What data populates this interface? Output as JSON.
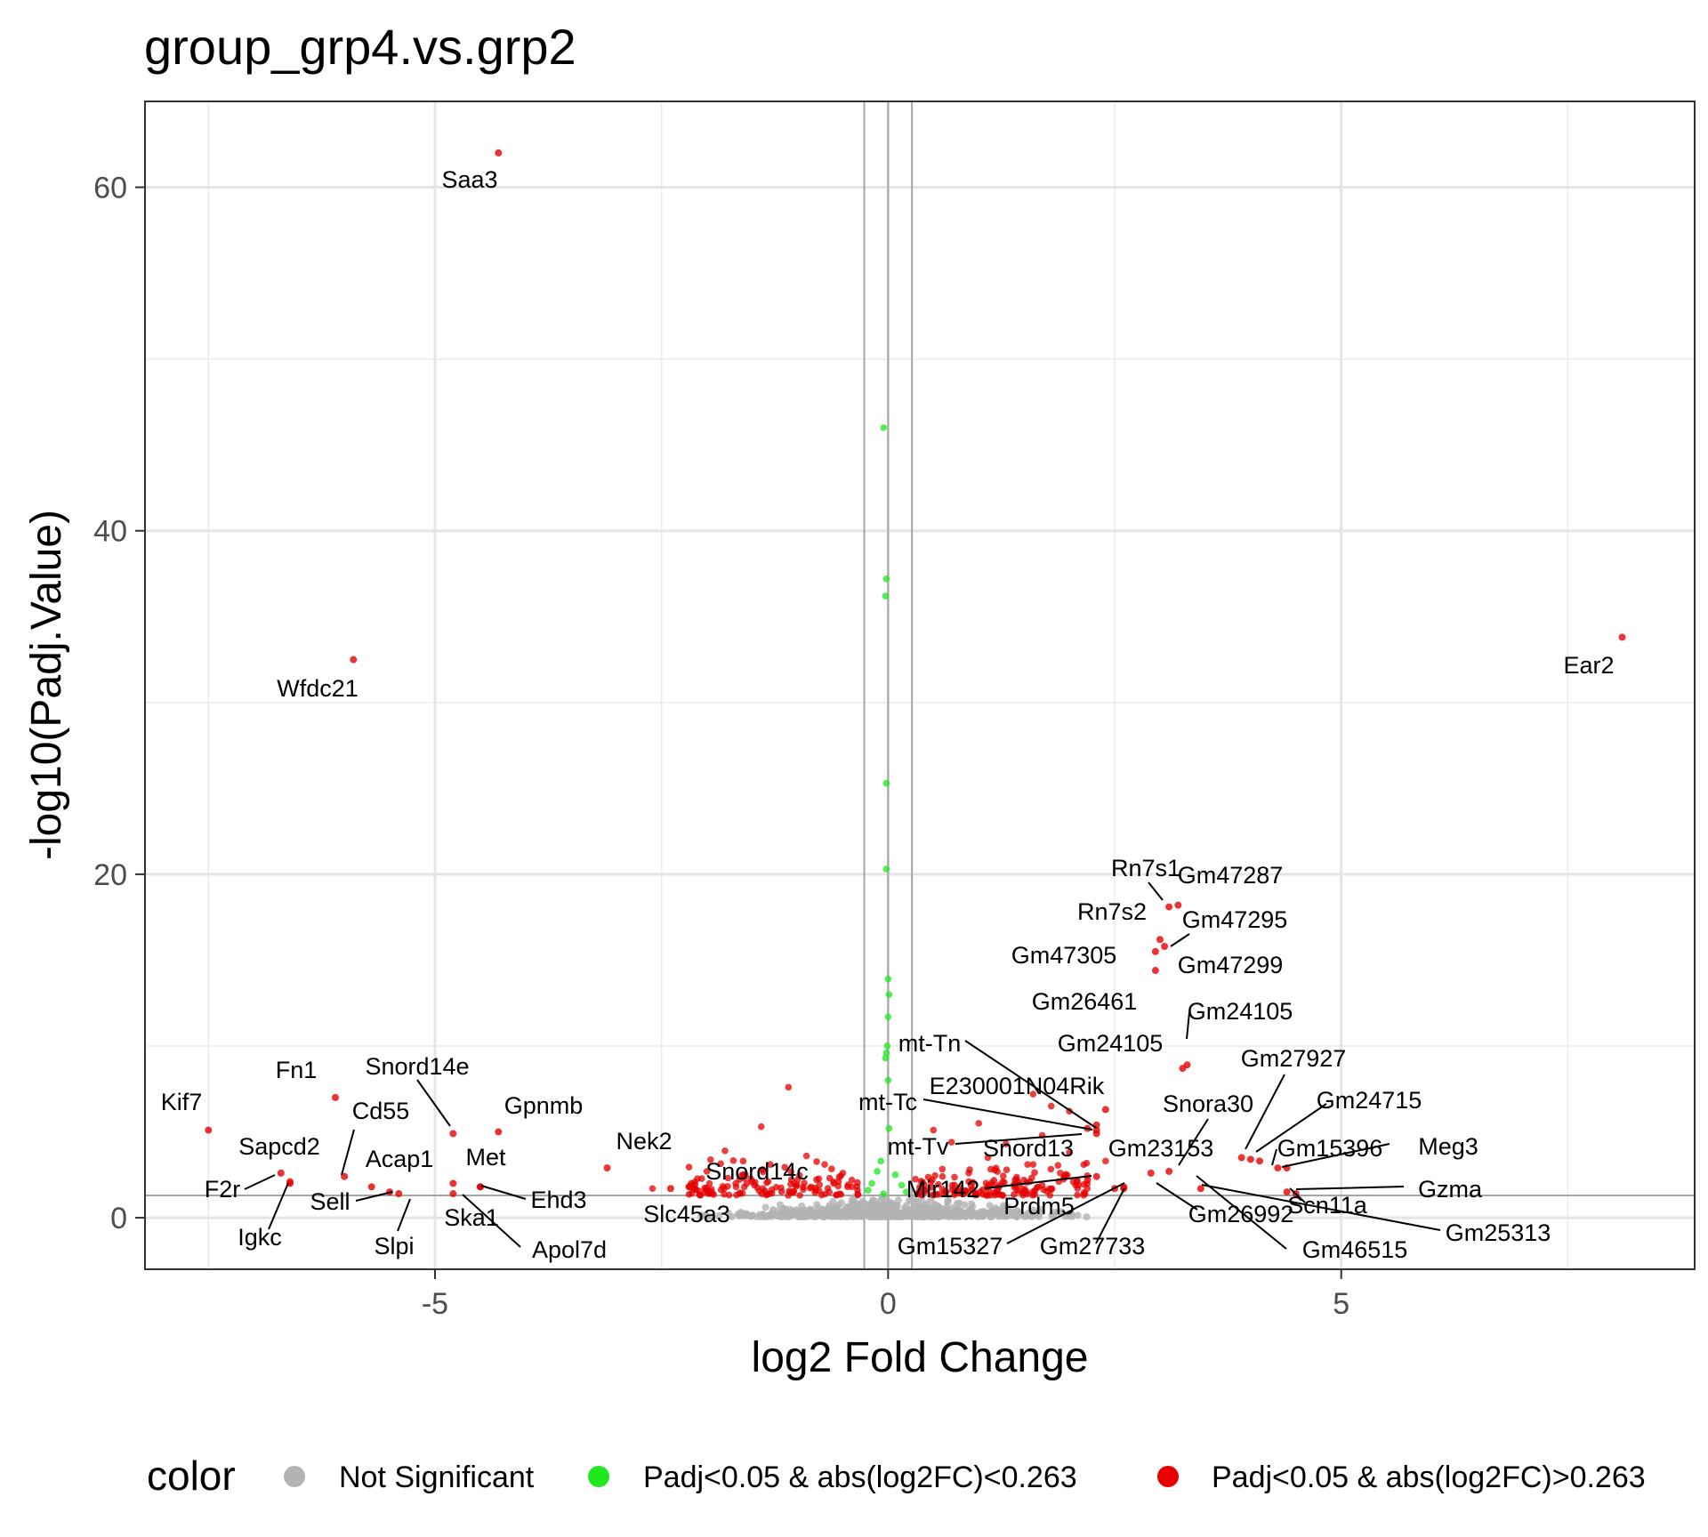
{
  "chart_data": {
    "type": "scatter",
    "title": "group_grp4.vs.grp2",
    "xlabel": "log2 Fold Change",
    "ylabel": "-log10(Padj.Value)",
    "xlim": [
      -8.2,
      8.9
    ],
    "ylim": [
      -3,
      65
    ],
    "x_ticks": [
      -5,
      0,
      5
    ],
    "y_ticks": [
      0,
      20,
      40,
      60
    ],
    "x_tick_labels": [
      "-5",
      "0",
      "5"
    ],
    "y_tick_labels": [
      "0",
      "20",
      "40",
      "60"
    ],
    "grid": true,
    "vlines": [
      -0.263,
      0,
      0.263
    ],
    "hline": 1.3,
    "legend": {
      "title": "color",
      "position": "bottom",
      "entries": [
        {
          "label": "Not Significant",
          "color": "#b3b3b3"
        },
        {
          "label": "Padj<0.05 & abs(log2FC)<0.263",
          "color": "#1ee81e"
        },
        {
          "label": "Padj<0.05 & abs(log2FC)>0.263",
          "color": "#e60000"
        }
      ]
    },
    "labeled_points": [
      {
        "gene": "Saa3",
        "x": -4.3,
        "y": 62.0
      },
      {
        "gene": "Wfdc21",
        "x": -5.9,
        "y": 32.5
      },
      {
        "gene": "Ear2",
        "x": 8.1,
        "y": 33.8
      },
      {
        "gene": "Rn7s1",
        "x": 3.1,
        "y": 18.1
      },
      {
        "gene": "Gm47287",
        "x": 3.2,
        "y": 18.2
      },
      {
        "gene": "Rn7s2",
        "x": 3.0,
        "y": 16.2
      },
      {
        "gene": "Gm47295",
        "x": 3.05,
        "y": 15.8
      },
      {
        "gene": "Gm47305",
        "x": 2.95,
        "y": 15.5
      },
      {
        "gene": "Gm47299",
        "x": 2.95,
        "y": 14.4
      },
      {
        "gene": "Gm24105",
        "x": 3.25,
        "y": 8.7
      },
      {
        "gene": "Gm26461",
        "x": 3.3,
        "y": 8.9
      },
      {
        "gene": "Gm27927",
        "x": 3.9,
        "y": 3.5
      },
      {
        "gene": "Gm24715",
        "x": 4.1,
        "y": 3.3
      },
      {
        "gene": "Snora30",
        "x": 4.0,
        "y": 3.4
      },
      {
        "gene": "Gm15396",
        "x": 4.3,
        "y": 2.9
      },
      {
        "gene": "Meg3",
        "x": 4.4,
        "y": 2.9
      },
      {
        "gene": "Gm23153",
        "x": 3.1,
        "y": 2.7
      },
      {
        "gene": "Gzma",
        "x": 4.5,
        "y": 1.4
      },
      {
        "gene": "Scn11a",
        "x": 4.4,
        "y": 1.5
      },
      {
        "gene": "Gm25313",
        "x": 3.45,
        "y": 1.7
      },
      {
        "gene": "Gm46515",
        "x": 2.9,
        "y": 2.6
      },
      {
        "gene": "Gm26992",
        "x": 2.6,
        "y": 1.8
      },
      {
        "gene": "Gm27733",
        "x": 2.6,
        "y": 1.7
      },
      {
        "gene": "Gm15327",
        "x": 2.5,
        "y": 1.7
      },
      {
        "gene": "Prdm5",
        "x": 2.3,
        "y": 2.4
      },
      {
        "gene": "Mir142",
        "x": 2.2,
        "y": 2.2
      },
      {
        "gene": "Snord13",
        "x": 2.3,
        "y": 4.9
      },
      {
        "gene": "mt-Tv",
        "x": 2.2,
        "y": 5.2
      },
      {
        "gene": "mt-Tc",
        "x": 2.3,
        "y": 5.1
      },
      {
        "gene": "mt-Tn",
        "x": 2.3,
        "y": 5.4
      },
      {
        "gene": "E230001N04Rik",
        "x": 2.4,
        "y": 6.3
      },
      {
        "gene": "Kif7",
        "x": -7.5,
        "y": 5.1
      },
      {
        "gene": "Fn1",
        "x": -6.1,
        "y": 7.0
      },
      {
        "gene": "Snord14e",
        "x": -4.8,
        "y": 4.9
      },
      {
        "gene": "Gpnmb",
        "x": -4.3,
        "y": 5.0
      },
      {
        "gene": "Cd55",
        "x": -6.0,
        "y": 2.4
      },
      {
        "gene": "Sapcd2",
        "x": -6.7,
        "y": 2.6
      },
      {
        "gene": "F2r",
        "x": -6.6,
        "y": 2.1
      },
      {
        "gene": "Igkc",
        "x": -6.6,
        "y": 2.0
      },
      {
        "gene": "Acap1",
        "x": -5.7,
        "y": 1.8
      },
      {
        "gene": "Sell",
        "x": -5.5,
        "y": 1.5
      },
      {
        "gene": "Slpi",
        "x": -5.4,
        "y": 1.4
      },
      {
        "gene": "Met",
        "x": -4.5,
        "y": 1.8
      },
      {
        "gene": "Ehd3",
        "x": -4.5,
        "y": 1.8
      },
      {
        "gene": "Ska1",
        "x": -4.8,
        "y": 2.0
      },
      {
        "gene": "Apol7d",
        "x": -4.8,
        "y": 1.4
      },
      {
        "gene": "Nek2",
        "x": -3.1,
        "y": 2.9
      },
      {
        "gene": "Snord14c",
        "x": -1.5,
        "y": 2.1
      },
      {
        "gene": "Slc45a3",
        "x": -2.4,
        "y": 1.7
      }
    ],
    "significant_small_fc_points": [
      {
        "x": -0.05,
        "y": 46.0
      },
      {
        "x": -0.02,
        "y": 37.2
      },
      {
        "x": -0.03,
        "y": 36.2
      },
      {
        "x": -0.02,
        "y": 25.3
      },
      {
        "x": -0.02,
        "y": 20.3
      },
      {
        "x": 0.0,
        "y": 13.9
      },
      {
        "x": 0.01,
        "y": 13.0
      },
      {
        "x": 0.0,
        "y": 11.7
      },
      {
        "x": -0.01,
        "y": 10.0
      },
      {
        "x": -0.02,
        "y": 9.6
      },
      {
        "x": -0.03,
        "y": 9.3
      },
      {
        "x": 0.0,
        "y": 8.0
      },
      {
        "x": 0.01,
        "y": 5.2
      },
      {
        "x": -0.08,
        "y": 3.3
      },
      {
        "x": -0.12,
        "y": 2.7
      },
      {
        "x": 0.08,
        "y": 2.5
      },
      {
        "x": -0.18,
        "y": 2.0
      },
      {
        "x": 0.15,
        "y": 1.9
      },
      {
        "x": -0.22,
        "y": 1.6
      },
      {
        "x": 0.2,
        "y": 1.5
      },
      {
        "x": -0.05,
        "y": 1.4
      }
    ],
    "significant_large_fc_points": [
      {
        "x": -1.1,
        "y": 7.6
      },
      {
        "x": -1.4,
        "y": 5.3
      },
      {
        "x": -1.8,
        "y": 3.9
      },
      {
        "x": -1.6,
        "y": 3.3
      },
      {
        "x": -1.3,
        "y": 3.1
      },
      {
        "x": -0.9,
        "y": 3.6
      },
      {
        "x": -0.7,
        "y": 3.1
      },
      {
        "x": -0.5,
        "y": 2.6
      },
      {
        "x": -2.0,
        "y": 2.7
      },
      {
        "x": -2.6,
        "y": 1.7
      },
      {
        "x": -2.2,
        "y": 1.8
      },
      {
        "x": -1.0,
        "y": 2.2
      },
      {
        "x": -0.6,
        "y": 2.0
      },
      {
        "x": -0.4,
        "y": 1.8
      },
      {
        "x": -0.8,
        "y": 1.6
      },
      {
        "x": 0.5,
        "y": 5.1
      },
      {
        "x": 0.7,
        "y": 4.4
      },
      {
        "x": 1.0,
        "y": 5.5
      },
      {
        "x": 1.3,
        "y": 4.3
      },
      {
        "x": 1.7,
        "y": 4.8
      },
      {
        "x": 1.1,
        "y": 3.5
      },
      {
        "x": 1.6,
        "y": 3.1
      },
      {
        "x": 2.0,
        "y": 3.8
      },
      {
        "x": 0.9,
        "y": 2.8
      },
      {
        "x": 0.6,
        "y": 2.4
      },
      {
        "x": 1.4,
        "y": 2.2
      },
      {
        "x": 1.9,
        "y": 2.6
      },
      {
        "x": 2.1,
        "y": 1.9
      },
      {
        "x": 0.4,
        "y": 1.9
      },
      {
        "x": 0.8,
        "y": 1.7
      },
      {
        "x": 1.2,
        "y": 1.6
      },
      {
        "x": 1.7,
        "y": 1.9
      },
      {
        "x": 2.4,
        "y": 3.3
      },
      {
        "x": 1.8,
        "y": 6.5
      },
      {
        "x": 1.6,
        "y": 7.2
      },
      {
        "x": 2.0,
        "y": 6.2
      }
    ]
  }
}
